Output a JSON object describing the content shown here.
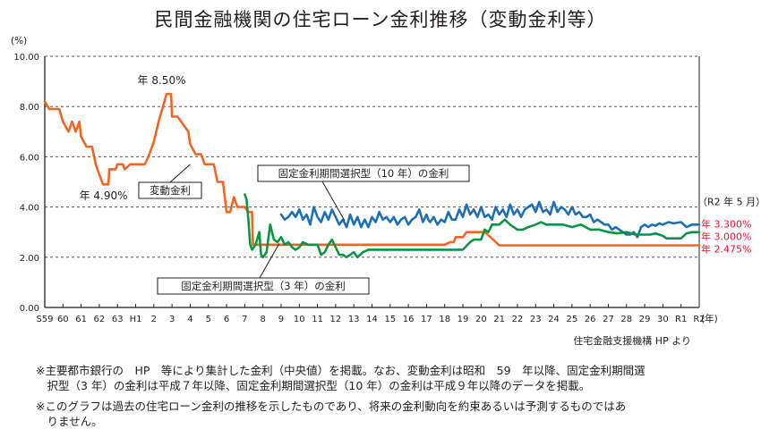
{
  "title": "民間金融機関の住宅ローン金利推移（変動金利等）",
  "source": "住宅金融支援機構 HP より",
  "notes": [
    "※主要都市銀行の　HP　等により集計した金利（中央値）を掲載。なお、変動金利は昭和　59　年以降、固定金利期間選",
    "　択型（3 年）の金利は平成７年以降、固定金利期間選択型（10 年）の金利は平成９年以降のデータを掲載。",
    "※このグラフは過去の住宅ローン金利の推移を示したものであり、将来の金利動向を約束あるいは予測するものではあ",
    "　りません。"
  ],
  "colors": {
    "variable": "#f26522",
    "fixed10": "#1f6fb4",
    "fixed3": "#0b9444",
    "latest_text": "#e8132a",
    "grid": "#555555",
    "axis": "#231f20"
  },
  "chart_data": {
    "type": "line",
    "y_unit": "(%)",
    "x_unit": "(年)",
    "ylim": [
      0,
      10
    ],
    "y_ticks": [
      "0.00",
      "2.00",
      "4.00",
      "6.00",
      "8.00",
      "10.00"
    ],
    "x_ticks": [
      "S59",
      "60",
      "61",
      "62",
      "63",
      "H1",
      "2",
      "3",
      "4",
      "5",
      "6",
      "7",
      "8",
      "9",
      "10",
      "11",
      "12",
      "13",
      "14",
      "15",
      "16",
      "17",
      "18",
      "19",
      "20",
      "21",
      "22",
      "23",
      "24",
      "25",
      "26",
      "27",
      "28",
      "29",
      "30",
      "R1",
      "R2"
    ],
    "grid": "dashed horizontal",
    "series": [
      {
        "name": "変動金利",
        "key": "variable",
        "points": [
          [
            0,
            8.2
          ],
          [
            0.25,
            7.9
          ],
          [
            0.8,
            7.9
          ],
          [
            1.0,
            7.4
          ],
          [
            1.3,
            7.0
          ],
          [
            1.5,
            7.4
          ],
          [
            1.7,
            7.0
          ],
          [
            1.9,
            7.4
          ],
          [
            2.0,
            6.8
          ],
          [
            2.3,
            6.4
          ],
          [
            2.6,
            6.4
          ],
          [
            2.8,
            5.7
          ],
          [
            3.0,
            5.3
          ],
          [
            3.2,
            4.9
          ],
          [
            3.5,
            4.9
          ],
          [
            3.55,
            5.5
          ],
          [
            3.9,
            5.5
          ],
          [
            4.0,
            5.7
          ],
          [
            4.3,
            5.7
          ],
          [
            4.4,
            5.5
          ],
          [
            4.7,
            5.7
          ],
          [
            5.0,
            5.7
          ],
          [
            5.2,
            5.7
          ],
          [
            5.5,
            5.7
          ],
          [
            5.7,
            6.0
          ],
          [
            5.85,
            6.3
          ],
          [
            6.0,
            6.6
          ],
          [
            6.3,
            7.5
          ],
          [
            6.5,
            8.0
          ],
          [
            6.7,
            8.5
          ],
          [
            6.95,
            8.5
          ],
          [
            7.0,
            7.6
          ],
          [
            7.3,
            7.6
          ],
          [
            7.6,
            7.3
          ],
          [
            7.9,
            7.0
          ],
          [
            8.0,
            6.5
          ],
          [
            8.3,
            6.1
          ],
          [
            8.6,
            6.1
          ],
          [
            8.8,
            5.7
          ],
          [
            9.0,
            5.7
          ],
          [
            9.3,
            5.7
          ],
          [
            9.5,
            5.0
          ],
          [
            9.8,
            5.0
          ],
          [
            10.0,
            3.8
          ],
          [
            10.2,
            3.8
          ],
          [
            10.4,
            4.4
          ],
          [
            10.6,
            4.0
          ],
          [
            11.0,
            4.0
          ],
          [
            11.2,
            3.8
          ],
          [
            11.4,
            3.8
          ],
          [
            11.45,
            2.5
          ],
          [
            12.0,
            2.5
          ],
          [
            13.0,
            2.5
          ],
          [
            14.0,
            2.5
          ],
          [
            15.0,
            2.5
          ],
          [
            16.0,
            2.5
          ],
          [
            17.0,
            2.5
          ],
          [
            18.0,
            2.5
          ],
          [
            19.0,
            2.5
          ],
          [
            20.0,
            2.5
          ],
          [
            21.0,
            2.5
          ],
          [
            22.0,
            2.5
          ],
          [
            22.3,
            2.6
          ],
          [
            22.5,
            2.6
          ],
          [
            22.6,
            2.8
          ],
          [
            22.8,
            2.8
          ],
          [
            23.0,
            2.8
          ],
          [
            23.2,
            3.0
          ],
          [
            23.6,
            3.0
          ],
          [
            24.2,
            3.0
          ],
          [
            24.6,
            2.75
          ],
          [
            25.0,
            2.475
          ],
          [
            36,
            2.475
          ]
        ]
      },
      {
        "name": "固定金利期間選択型（10 年）の金利",
        "key": "fixed10",
        "points": [
          [
            13.0,
            3.7
          ],
          [
            13.2,
            3.5
          ],
          [
            13.4,
            3.6
          ],
          [
            13.6,
            3.8
          ],
          [
            13.8,
            3.6
          ],
          [
            14.0,
            3.9
          ],
          [
            14.2,
            3.5
          ],
          [
            14.4,
            3.7
          ],
          [
            14.6,
            3.3
          ],
          [
            14.8,
            4.0
          ],
          [
            15.0,
            3.6
          ],
          [
            15.2,
            3.4
          ],
          [
            15.4,
            3.8
          ],
          [
            15.6,
            3.5
          ],
          [
            15.8,
            3.9
          ],
          [
            16.0,
            3.6
          ],
          [
            16.2,
            3.3
          ],
          [
            16.4,
            3.5
          ],
          [
            16.6,
            3.2
          ],
          [
            16.8,
            3.7
          ],
          [
            17.0,
            3.3
          ],
          [
            17.2,
            3.6
          ],
          [
            17.4,
            3.2
          ],
          [
            17.6,
            3.5
          ],
          [
            17.8,
            3.2
          ],
          [
            18.0,
            3.6
          ],
          [
            18.2,
            3.4
          ],
          [
            18.4,
            3.8
          ],
          [
            18.6,
            3.5
          ],
          [
            18.8,
            3.6
          ],
          [
            19.0,
            3.4
          ],
          [
            19.2,
            3.6
          ],
          [
            19.4,
            3.3
          ],
          [
            19.6,
            3.5
          ],
          [
            19.8,
            3.6
          ],
          [
            20.0,
            3.3
          ],
          [
            20.2,
            3.5
          ],
          [
            20.4,
            3.6
          ],
          [
            20.6,
            3.9
          ],
          [
            20.8,
            3.4
          ],
          [
            21.0,
            3.7
          ],
          [
            21.1,
            3.5
          ],
          [
            21.2,
            3.4
          ],
          [
            21.4,
            3.6
          ],
          [
            21.6,
            3.3
          ],
          [
            21.8,
            3.5
          ],
          [
            22.0,
            3.4
          ],
          [
            22.2,
            3.8
          ],
          [
            22.4,
            3.5
          ],
          [
            22.6,
            3.5
          ],
          [
            22.8,
            3.9
          ],
          [
            23.0,
            3.6
          ],
          [
            23.2,
            4.1
          ],
          [
            23.4,
            3.7
          ],
          [
            23.6,
            3.9
          ],
          [
            23.8,
            3.6
          ],
          [
            24.0,
            4.0
          ],
          [
            24.2,
            3.6
          ],
          [
            24.4,
            3.7
          ],
          [
            24.6,
            3.5
          ],
          [
            24.8,
            4.0
          ],
          [
            25.0,
            3.7
          ],
          [
            25.2,
            3.9
          ],
          [
            25.4,
            3.6
          ],
          [
            25.6,
            4.1
          ],
          [
            25.8,
            3.7
          ],
          [
            26.0,
            3.9
          ],
          [
            26.2,
            3.6
          ],
          [
            26.4,
            3.9
          ],
          [
            26.6,
            4.0
          ],
          [
            26.8,
            4.1
          ],
          [
            27.0,
            3.8
          ],
          [
            27.2,
            4.2
          ],
          [
            27.4,
            3.8
          ],
          [
            27.6,
            3.9
          ],
          [
            27.8,
            3.7
          ],
          [
            28.0,
            4.2
          ],
          [
            28.2,
            3.8
          ],
          [
            28.4,
            4.0
          ],
          [
            28.6,
            3.9
          ],
          [
            28.8,
            3.7
          ],
          [
            29.0,
            4.0
          ],
          [
            29.2,
            3.7
          ],
          [
            29.4,
            3.8
          ],
          [
            29.6,
            3.6
          ],
          [
            29.8,
            3.6
          ],
          [
            30.0,
            3.7
          ],
          [
            30.2,
            3.4
          ],
          [
            30.4,
            3.5
          ],
          [
            30.6,
            3.4
          ],
          [
            30.8,
            3.3
          ],
          [
            31.0,
            3.3
          ],
          [
            31.2,
            3.1
          ],
          [
            31.4,
            3.2
          ],
          [
            31.6,
            3.1
          ],
          [
            31.8,
            3.0
          ],
          [
            32.0,
            2.9
          ],
          [
            32.2,
            2.9
          ],
          [
            32.4,
            3.0
          ],
          [
            32.6,
            2.8
          ],
          [
            32.8,
            3.2
          ],
          [
            33.0,
            3.3
          ],
          [
            33.2,
            3.2
          ],
          [
            33.4,
            3.3
          ],
          [
            33.6,
            3.25
          ],
          [
            33.8,
            3.35
          ],
          [
            34.0,
            3.3
          ],
          [
            34.3,
            3.4
          ],
          [
            34.6,
            3.35
          ],
          [
            35.0,
            3.4
          ],
          [
            35.3,
            3.2
          ],
          [
            35.6,
            3.3
          ],
          [
            36.0,
            3.3
          ]
        ]
      },
      {
        "name": "固定金利期間選択型（3 年）の金利",
        "key": "fixed3",
        "points": [
          [
            11.0,
            4.5
          ],
          [
            11.1,
            4.3
          ],
          [
            11.2,
            3.5
          ],
          [
            11.3,
            2.5
          ],
          [
            11.4,
            2.3
          ],
          [
            11.6,
            2.5
          ],
          [
            11.8,
            3.0
          ],
          [
            11.9,
            2.1
          ],
          [
            12.0,
            2.0
          ],
          [
            12.2,
            2.2
          ],
          [
            12.4,
            3.3
          ],
          [
            12.6,
            2.7
          ],
          [
            12.8,
            2.6
          ],
          [
            13.0,
            2.8
          ],
          [
            13.2,
            2.5
          ],
          [
            13.4,
            2.6
          ],
          [
            13.6,
            2.4
          ],
          [
            13.8,
            2.3
          ],
          [
            14.0,
            2.4
          ],
          [
            14.2,
            2.6
          ],
          [
            14.5,
            2.5
          ],
          [
            14.8,
            2.5
          ],
          [
            15.0,
            2.5
          ],
          [
            15.2,
            2.1
          ],
          [
            15.4,
            2.2
          ],
          [
            15.6,
            2.5
          ],
          [
            15.8,
            2.7
          ],
          [
            16.0,
            2.4
          ],
          [
            16.2,
            2.1
          ],
          [
            16.4,
            2.1
          ],
          [
            16.6,
            2.0
          ],
          [
            16.8,
            2.1
          ],
          [
            17.0,
            2.2
          ],
          [
            17.2,
            2.0
          ],
          [
            17.5,
            2.2
          ],
          [
            17.8,
            2.3
          ],
          [
            18.0,
            2.3
          ],
          [
            19.0,
            2.3
          ],
          [
            20.0,
            2.3
          ],
          [
            21.0,
            2.3
          ],
          [
            22.0,
            2.3
          ],
          [
            23.0,
            2.3
          ],
          [
            23.4,
            2.6
          ],
          [
            23.6,
            2.7
          ],
          [
            24.0,
            2.7
          ],
          [
            24.2,
            3.1
          ],
          [
            24.4,
            3.0
          ],
          [
            24.6,
            3.3
          ],
          [
            24.8,
            3.3
          ],
          [
            25.0,
            3.3
          ],
          [
            25.3,
            3.5
          ],
          [
            25.6,
            3.3
          ],
          [
            26.0,
            3.1
          ],
          [
            26.3,
            3.1
          ],
          [
            26.6,
            3.2
          ],
          [
            27.0,
            3.3
          ],
          [
            27.3,
            3.4
          ],
          [
            27.6,
            3.3
          ],
          [
            28.0,
            3.3
          ],
          [
            28.5,
            3.3
          ],
          [
            29.0,
            3.2
          ],
          [
            29.5,
            3.3
          ],
          [
            30.0,
            3.1
          ],
          [
            30.5,
            3.1
          ],
          [
            31.0,
            3.0
          ],
          [
            31.5,
            2.95
          ],
          [
            32.0,
            3.0
          ],
          [
            32.5,
            2.9
          ],
          [
            33.0,
            2.9
          ],
          [
            33.3,
            2.9
          ],
          [
            33.6,
            2.95
          ],
          [
            34.0,
            2.85
          ],
          [
            34.2,
            2.75
          ],
          [
            34.5,
            2.75
          ],
          [
            35.0,
            2.75
          ],
          [
            35.3,
            2.95
          ],
          [
            35.6,
            3.0
          ],
          [
            36.0,
            3.0
          ]
        ]
      }
    ],
    "annotations": {
      "peak_label": "年 8.50%",
      "low_label": "年 4.90%",
      "variable_label": "変動金利",
      "fixed10_label": "固定金利期間選択型（10 年）の金利",
      "fixed3_label": "固定金利期間選択型（3 年）の金利",
      "latest_header": "（R2 年 5 月）",
      "latest_fixed10": "年 3.300%",
      "latest_fixed3": "年 3.000%",
      "latest_variable": "年 2.475%"
    }
  }
}
